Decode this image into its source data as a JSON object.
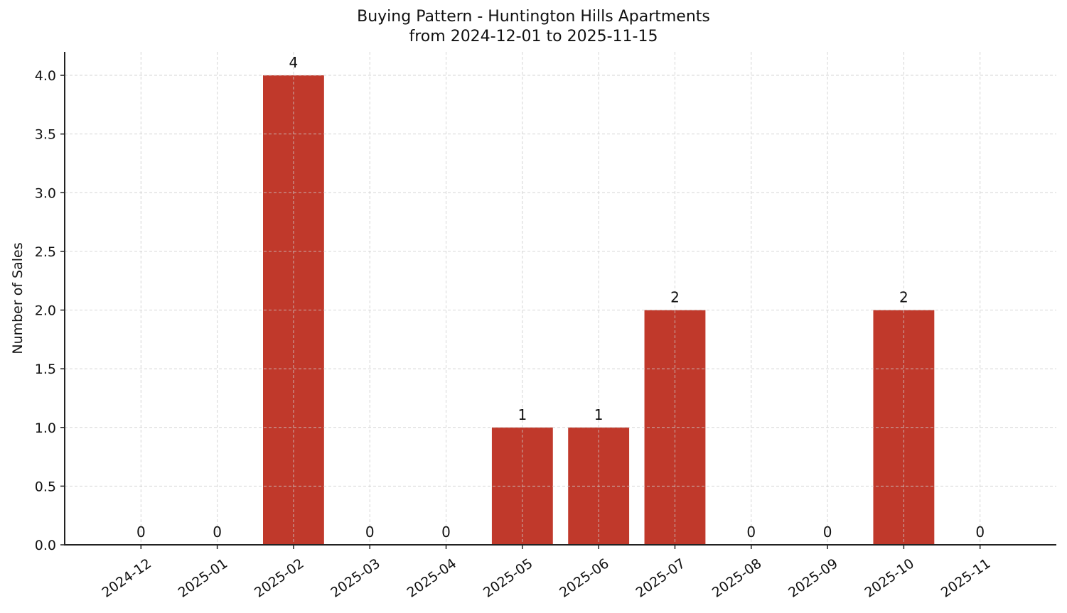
{
  "chart_data": {
    "type": "bar",
    "title": "Buying Pattern - Huntington Hills Apartments",
    "subtitle": "from 2024-12-01 to 2025-11-15",
    "xlabel": "",
    "ylabel": "Number of Sales",
    "categories": [
      "2024-12",
      "2025-01",
      "2025-02",
      "2025-03",
      "2025-04",
      "2025-05",
      "2025-06",
      "2025-07",
      "2025-08",
      "2025-09",
      "2025-10",
      "2025-11"
    ],
    "values": [
      0,
      0,
      4,
      0,
      0,
      1,
      1,
      2,
      0,
      0,
      2,
      0
    ],
    "data_labels": [
      "0",
      "0",
      "4",
      "0",
      "0",
      "1",
      "1",
      "2",
      "0",
      "0",
      "2",
      "0"
    ],
    "ylim": [
      0,
      4.2
    ],
    "yticks": [
      0.0,
      0.5,
      1.0,
      1.5,
      2.0,
      2.5,
      3.0,
      3.5,
      4.0
    ],
    "ytick_labels": [
      "0.0",
      "0.5",
      "1.0",
      "1.5",
      "2.0",
      "2.5",
      "3.0",
      "3.5",
      "4.0"
    ],
    "xtick_rotation": 35,
    "grid": true,
    "grid_style": "dashed",
    "legend": null,
    "bar_color": "#c0392b"
  },
  "colors": {
    "bar": "#c0392b",
    "axis": "#222222",
    "grid": "#cccccc",
    "text": "#111111"
  }
}
